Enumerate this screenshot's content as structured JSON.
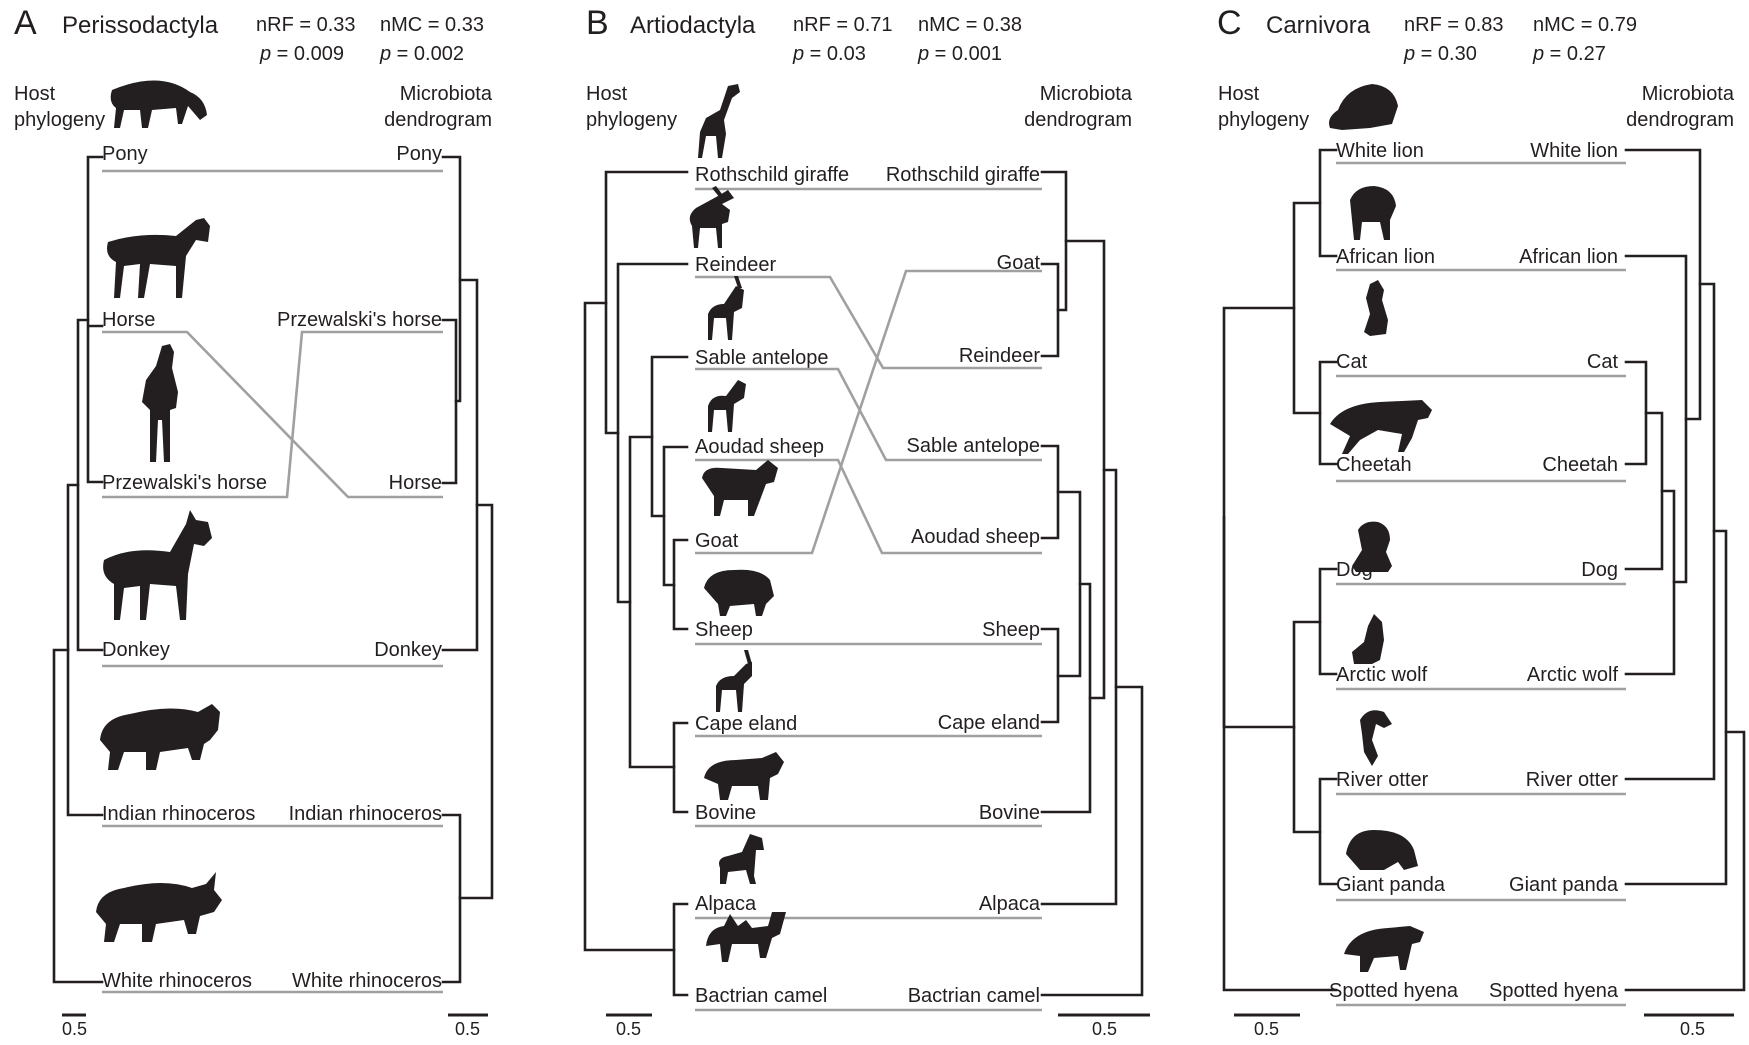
{
  "panels": [
    {
      "letter": "A",
      "title": "Perissodactyla",
      "nrf": "nRF = 0.33",
      "p_nrf_label": "p",
      "p_nrf_value": " = 0.009",
      "nmc": "nMC = 0.33",
      "p_nmc_label": "p",
      "p_nmc_value": " = 0.002",
      "host_label": [
        "Host",
        "phylogeny"
      ],
      "microbiota_label": [
        "Microbiota",
        "dendrogram"
      ],
      "host_order": [
        "Pony",
        "Horse",
        "Przewalski's horse",
        "Donkey",
        "Indian rhinoceros",
        "White rhinoceros"
      ],
      "microbiota_order": [
        "Pony",
        "Przewalski's horse",
        "Horse",
        "Donkey",
        "Indian rhinoceros",
        "White rhinoceros"
      ],
      "silhouettes": [
        "pony-silhouette-icon",
        "horse-silhouette-icon",
        "przewalskis-horse-silhouette-icon",
        "donkey-silhouette-icon",
        "indian-rhinoceros-silhouette-icon",
        "white-rhinoceros-silhouette-icon"
      ],
      "scale_left": "0.5",
      "scale_right": "0.5"
    },
    {
      "letter": "B",
      "title": "Artiodactyla",
      "nrf": "nRF = 0.71",
      "p_nrf_label": "p",
      "p_nrf_value": "  = 0.03",
      "nmc": "nMC = 0.38",
      "p_nmc_label": "p",
      "p_nmc_value": " = 0.001",
      "host_label": [
        "Host",
        "phylogeny"
      ],
      "microbiota_label": [
        "Microbiota",
        "dendrogram"
      ],
      "host_order": [
        "Rothschild giraffe",
        "Reindeer",
        "Sable antelope",
        "Aoudad sheep",
        "Goat",
        "Sheep",
        "Cape eland",
        "Bovine",
        "Alpaca",
        "Bactrian camel"
      ],
      "microbiota_order": [
        "Rothschild giraffe",
        "Goat",
        "Reindeer",
        "Sable antelope",
        "Aoudad sheep",
        "Sheep",
        "Cape eland",
        "Bovine",
        "Alpaca",
        "Bactrian camel"
      ],
      "silhouettes": [
        "giraffe-silhouette-icon",
        "reindeer-silhouette-icon",
        "sable-antelope-silhouette-icon",
        "aoudad-sheep-silhouette-icon",
        "goat-silhouette-icon",
        "sheep-silhouette-icon",
        "cape-eland-silhouette-icon",
        "bovine-silhouette-icon",
        "alpaca-silhouette-icon",
        "bactrian-camel-silhouette-icon"
      ],
      "scale_left": "0.5",
      "scale_right": "0.5"
    },
    {
      "letter": "C",
      "title": "Carnivora",
      "nrf": "nRF = 0.83",
      "p_nrf_label": "p",
      "p_nrf_value": " = 0.30",
      "nmc": "nMC = 0.79",
      "p_nmc_label": "p",
      "p_nmc_value": " = 0.27",
      "host_label": [
        "Host",
        "phylogeny"
      ],
      "microbiota_label": [
        "Microbiota",
        "dendrogram"
      ],
      "host_order": [
        "White lion",
        "African lion",
        "Cat",
        "Cheetah",
        "Dog",
        "Arctic wolf",
        "River otter",
        "Giant panda",
        "Spotted hyena"
      ],
      "microbiota_order": [
        "White lion",
        "African lion",
        "Cat",
        "Cheetah",
        "Dog",
        "Arctic wolf",
        "River otter",
        "Giant panda",
        "Spotted hyena"
      ],
      "silhouettes": [
        "white-lion-silhouette-icon",
        "african-lion-silhouette-icon",
        "cat-silhouette-icon",
        "cheetah-silhouette-icon",
        "dog-silhouette-icon",
        "arctic-wolf-silhouette-icon",
        "river-otter-silhouette-icon",
        "giant-panda-silhouette-icon",
        "spotted-hyena-silhouette-icon"
      ],
      "scale_left": "0.5",
      "scale_right": "0.5"
    }
  ],
  "colors": {
    "tree": "#231f20",
    "connector": "#a0a0a0",
    "text": "#231f20",
    "background": "#ffffff"
  }
}
